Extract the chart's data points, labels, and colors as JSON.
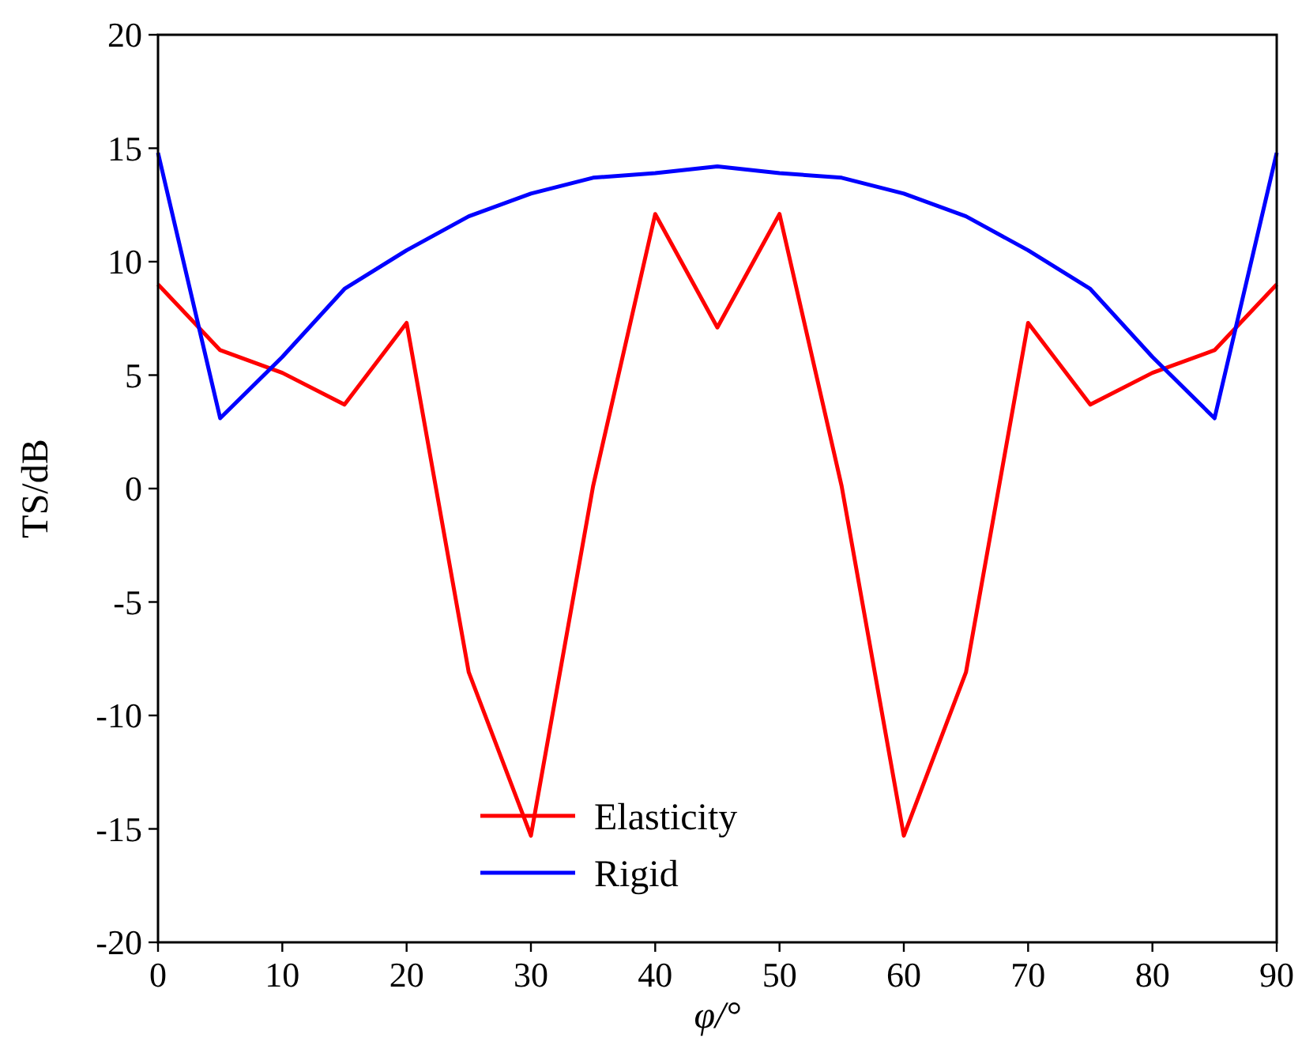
{
  "chart_data": {
    "type": "line",
    "xlabel": "φ/°",
    "ylabel": "TS/dB",
    "x": [
      0,
      5,
      10,
      15,
      20,
      25,
      30,
      35,
      40,
      45,
      50,
      55,
      60,
      65,
      70,
      75,
      80,
      85,
      90
    ],
    "series": [
      {
        "name": "Elasticity",
        "color": "#ff0000",
        "values": [
          9.0,
          6.1,
          5.1,
          3.7,
          7.3,
          -8.1,
          -15.3,
          0.1,
          12.1,
          7.1,
          12.1,
          0.1,
          -15.3,
          -8.1,
          7.3,
          3.7,
          5.1,
          6.1,
          9.0
        ]
      },
      {
        "name": "Rigid",
        "color": "#0000ff",
        "values": [
          14.8,
          3.1,
          5.8,
          8.8,
          10.5,
          12.0,
          13.0,
          13.7,
          13.9,
          14.2,
          13.9,
          13.7,
          13.0,
          12.0,
          10.5,
          8.8,
          5.8,
          3.1,
          14.8
        ]
      }
    ],
    "xlim": [
      0,
      90
    ],
    "xticks": [
      0,
      10,
      20,
      30,
      40,
      50,
      60,
      70,
      80,
      90
    ],
    "ylim": [
      -20,
      20
    ],
    "yticks": [
      -20,
      -15,
      -10,
      -5,
      0,
      5,
      10,
      15,
      20
    ],
    "legend": "bottom",
    "grid": false,
    "line_style": "solid",
    "marker": "none"
  }
}
